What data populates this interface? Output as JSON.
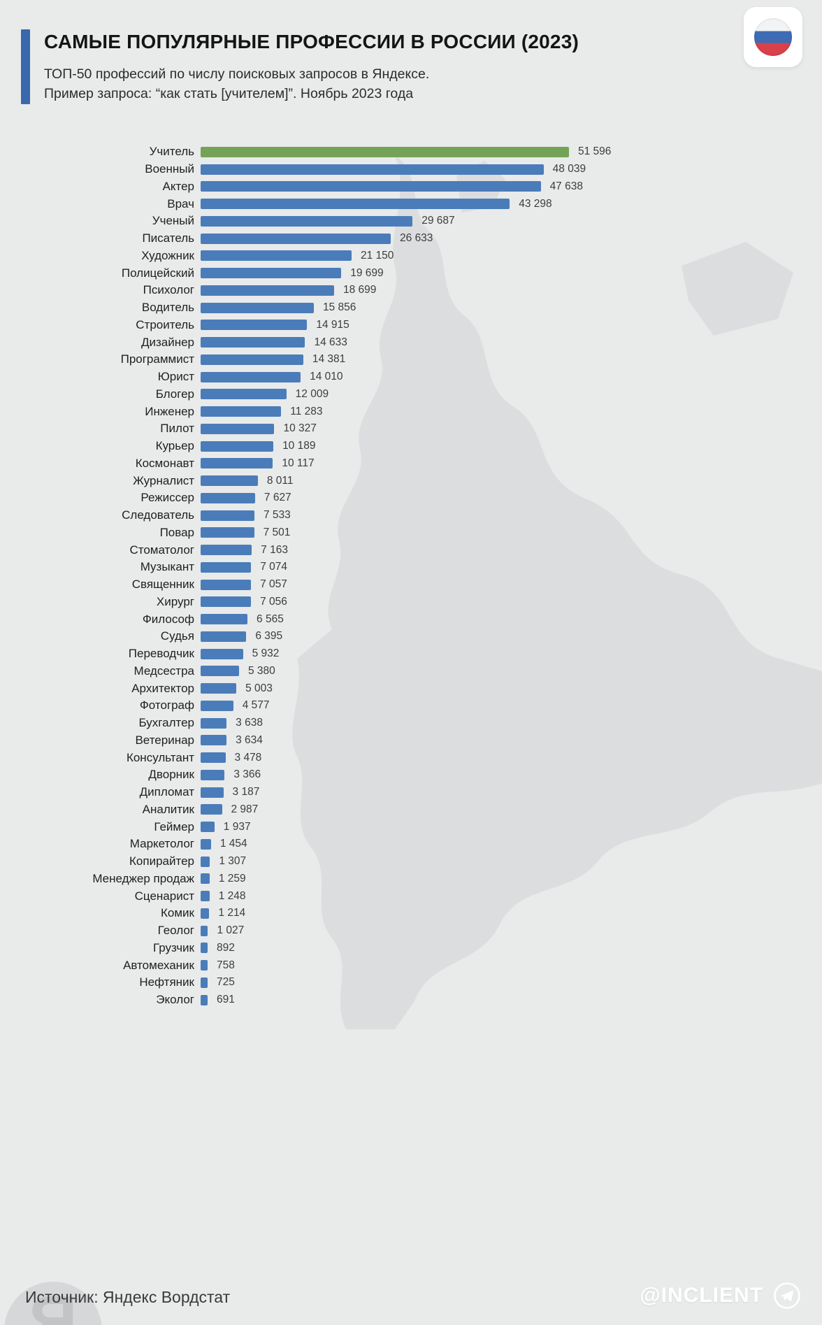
{
  "header": {
    "title": "САМЫЕ ПОПУЛЯРНЫЕ ПРОФЕССИИ В РОССИИ (2023)",
    "subtitle_line1": "ТОП-50 профессий по числу поисковых запросов в Яндексе.",
    "subtitle_line2": "Пример запроса: “как стать [учителем]”. Ноябрь 2023 года"
  },
  "footer": {
    "source": "Источник: Яндекс Вордстат",
    "handle": "@INCLIENT"
  },
  "icons": {
    "flag": "russian-flag-icon",
    "telegram": "telegram-icon"
  },
  "colors": {
    "background": "#e9eaea",
    "bar_blue": "#4a7cba",
    "bar_green": "#73a356",
    "accent": "#3a68ae",
    "map": "#dcddde"
  },
  "chart_data": {
    "type": "bar",
    "orientation": "horizontal",
    "title": "САМЫЕ ПОПУЛЯРНЫЕ ПРОФЕССИИ В РОССИИ (2023)",
    "subtitle": "ТОП-50 профессий по числу поисковых запросов в Яндексе. Пример запроса: “как стать [учителем]”. Ноябрь 2023 года",
    "xlim": [
      0,
      52000
    ],
    "highlight_index": 0,
    "legend": null,
    "categories": [
      "Учитель",
      "Военный",
      "Актер",
      "Врач",
      "Ученый",
      "Писатель",
      "Художник",
      "Полицейский",
      "Психолог",
      "Водитель",
      "Строитель",
      "Дизайнер",
      "Программист",
      "Юрист",
      "Блогер",
      "Инженер",
      "Пилот",
      "Курьер",
      "Космонавт",
      "Журналист",
      "Режиссер",
      "Следователь",
      "Повар",
      "Стоматолог",
      "Музыкант",
      "Священник",
      "Хирург",
      "Философ",
      "Судья",
      "Переводчик",
      "Медсестра",
      "Архитектор",
      "Фотограф",
      "Бухгалтер",
      "Ветеринар",
      "Консультант",
      "Дворник",
      "Дипломат",
      "Аналитик",
      "Геймер",
      "Маркетолог",
      "Копирайтер",
      "Менеджер продаж",
      "Сценарист",
      "Комик",
      "Геолог",
      "Грузчик",
      "Автомеханик",
      "Нефтяник",
      "Эколог"
    ],
    "values": [
      51596,
      48039,
      47638,
      43298,
      29687,
      26633,
      21150,
      19699,
      18699,
      15856,
      14915,
      14633,
      14381,
      14010,
      12009,
      11283,
      10327,
      10189,
      10117,
      8011,
      7627,
      7533,
      7501,
      7163,
      7074,
      7057,
      7056,
      6565,
      6395,
      5932,
      5380,
      5003,
      4577,
      3638,
      3634,
      3478,
      3366,
      3187,
      2987,
      1937,
      1454,
      1307,
      1259,
      1248,
      1214,
      1027,
      892,
      758,
      725,
      691
    ],
    "value_labels": [
      "51 596",
      "48 039",
      "47 638",
      "43 298",
      "29 687",
      "26 633",
      "21 150",
      "19 699",
      "18 699",
      "15 856",
      "14 915",
      "14 633",
      "14 381",
      "14 010",
      "12 009",
      "11 283",
      "10 327",
      "10 189",
      "10 117",
      "8 011",
      "7 627",
      "7 533",
      "7 501",
      "7 163",
      "7 074",
      "7 057",
      "7 056",
      "6 565",
      "6 395",
      "5 932",
      "5 380",
      "5 003",
      "4 577",
      "3 638",
      "3 634",
      "3 478",
      "3 366",
      "3 187",
      "2 987",
      "1 937",
      "1 454",
      "1 307",
      "1 259",
      "1 248",
      "1 214",
      "1 027",
      "892",
      "758",
      "725",
      "691"
    ]
  }
}
